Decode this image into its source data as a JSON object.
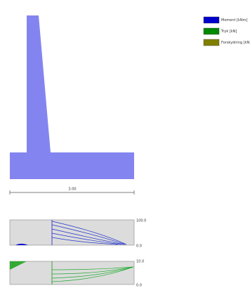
{
  "legend": {
    "items": [
      {
        "label": "Moment [kNm]",
        "color": "#0000cc"
      },
      {
        "label": "Tryk [kN]",
        "color": "#008800"
      },
      {
        "label": "Forskydning [kN]",
        "color": "#808000"
      }
    ]
  },
  "dimension": {
    "label": "3.00"
  },
  "diagrams": [
    {
      "top_label": "100.0",
      "bottom_label": "0.0"
    },
    {
      "top_label": "10.0",
      "bottom_label": "0.0"
    }
  ]
}
